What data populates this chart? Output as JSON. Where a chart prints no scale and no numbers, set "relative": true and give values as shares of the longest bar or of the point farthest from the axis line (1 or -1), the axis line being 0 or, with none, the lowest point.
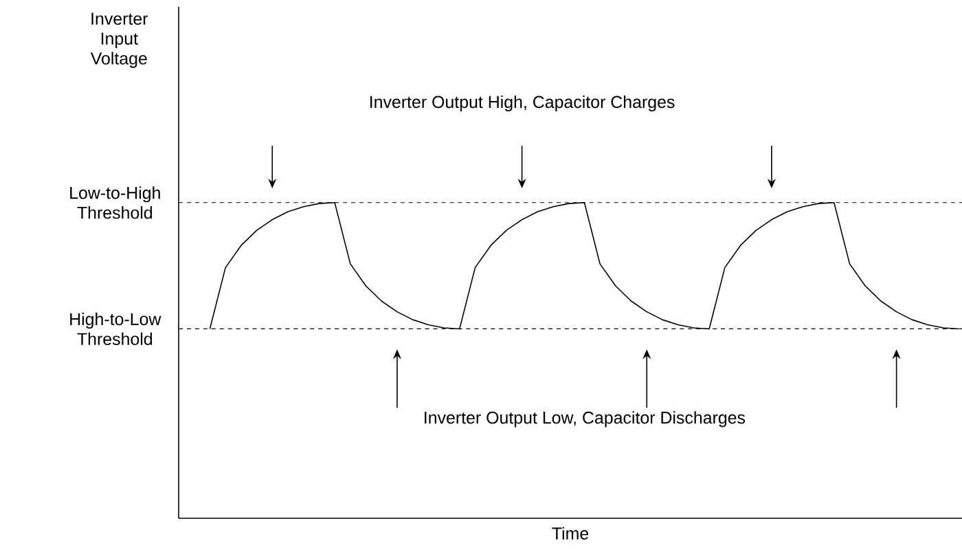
{
  "chart_data": {
    "type": "line",
    "relative": true,
    "xlabel": "Time",
    "categories": [
      null,
      null,
      null,
      null,
      null,
      null,
      null,
      null,
      null,
      null,
      null,
      null,
      null,
      null,
      null,
      null,
      null,
      null,
      null,
      null,
      null,
      null,
      null,
      null,
      null,
      null,
      null,
      null,
      null,
      null,
      null,
      null,
      null,
      null,
      null,
      null,
      null,
      null,
      null,
      null,
      null,
      null,
      null,
      null,
      null,
      null,
      null,
      null,
      null
    ],
    "series": [
      {
        "color": "#000000",
        "values": [
          0.6,
          0.794,
          0.864,
          0.912,
          0.946,
          0.971,
          0.987,
          0.997,
          1,
          0.806,
          0.736,
          0.688,
          0.654,
          0.629,
          0.613,
          0.603,
          0.6,
          0.794,
          0.864,
          0.912,
          0.946,
          0.971,
          0.987,
          0.997,
          1,
          0.806,
          0.736,
          0.688,
          0.654,
          0.629,
          0.613,
          0.603,
          0.6,
          0.794,
          0.864,
          0.912,
          0.946,
          0.971,
          0.987,
          0.997,
          1,
          0.806,
          0.736,
          0.688,
          0.654,
          0.629,
          0.613,
          0.603,
          0.6
        ]
      }
    ],
    "ref_lines": [
      {
        "axis": "y",
        "value": 1,
        "label": "Low-to-High Threshold",
        "color": "#000000",
        "line_style": "dashed"
      },
      {
        "axis": "y",
        "value": 0.6,
        "label": "High-to-Low Threshold",
        "color": "#000000",
        "line_style": "dashed"
      }
    ],
    "annotations": [
      "Inverter Input Voltage",
      "Inverter Output High, Capacitor Charges",
      "Inverter Output Low, Capacitor Discharges"
    ],
    "tick_labels": false,
    "marker": "none",
    "line_style": "solid"
  }
}
